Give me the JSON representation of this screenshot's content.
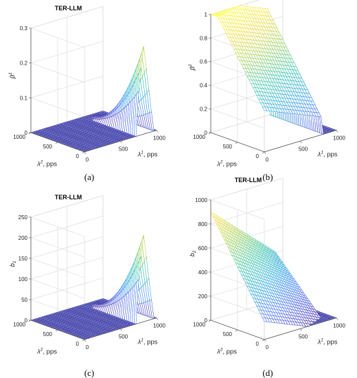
{
  "chart_data": [
    {
      "type": "surface3d",
      "panel": "a",
      "caption": "(a)",
      "title": "TER-LLM",
      "zlabel": {
        "main": "β",
        "sup": "1"
      },
      "xlabel": {
        "main": "λ",
        "sup": "1",
        "tail": ", pps"
      },
      "ylabel": {
        "main": "λ",
        "sup": "2",
        "tail": ", pps"
      },
      "xlim": [
        0,
        1000
      ],
      "ylim": [
        0,
        1000
      ],
      "zlim": [
        0,
        0.3
      ],
      "xticks": [
        0,
        500,
        1000
      ],
      "yticks": [
        0,
        500,
        1000
      ],
      "zticks": [
        0,
        0.1,
        0.2,
        0.3
      ],
      "ztick_labels": [
        "0",
        "0.1",
        "0.2",
        "0.3"
      ],
      "surface": "β¹ ≈ 0 for λ¹ below ~750 pps; rises on a ridge near λ¹ ≈ 750–950 pps, largest at small λ²",
      "peak": {
        "x": 800,
        "y": 0,
        "z": 0.25
      }
    },
    {
      "type": "surface3d",
      "panel": "b",
      "caption": "(b)",
      "title": "TER-LLM",
      "zlabel": {
        "main": "β",
        "sup": "2"
      },
      "xlabel": {
        "main": "λ",
        "sup": "1",
        "tail": ", pps"
      },
      "ylabel": {
        "main": "λ",
        "sup": "2",
        "tail": ", pps"
      },
      "xlim": [
        0,
        1000
      ],
      "ylim": [
        0,
        1000
      ],
      "zlim": [
        0,
        1
      ],
      "xticks": [
        0,
        500,
        1000
      ],
      "yticks": [
        0,
        500,
        1000
      ],
      "zticks": [
        0,
        0.2,
        0.4,
        0.6,
        0.8,
        1
      ],
      "ztick_labels": [
        "0",
        "0.2",
        "0.4",
        "0.6",
        "0.8",
        "1"
      ],
      "surface": "β² grows with λ² + λ¹, reaching 1 along the high-λ² edge; drops to 0 beyond λ¹ ≈ 800 pps",
      "peak": {
        "x": 0,
        "y": 1000,
        "z": 1
      }
    },
    {
      "type": "surface3d",
      "panel": "c",
      "caption": "(c)",
      "title": "TER-LLM",
      "zlabel": {
        "main": "b",
        "sub": "1"
      },
      "xlabel": {
        "main": "λ",
        "sup": "1",
        "tail": ", pps"
      },
      "ylabel": {
        "main": "λ",
        "sup": "2",
        "tail": ", pps"
      },
      "xlim": [
        0,
        1000
      ],
      "ylim": [
        0,
        1000
      ],
      "zlim": [
        0,
        250
      ],
      "xticks": [
        0,
        500,
        1000
      ],
      "yticks": [
        0,
        500,
        1000
      ],
      "zticks": [
        0,
        50,
        100,
        150,
        200,
        250
      ],
      "ztick_labels": [
        "0",
        "50",
        "100",
        "150",
        "200",
        "250"
      ],
      "surface": "b₁ ≈ 0 for λ¹ below ~750 pps; ridge near λ¹ ≈ 750–950 pps, largest at small λ²",
      "peak": {
        "x": 800,
        "y": 0,
        "z": 210
      }
    },
    {
      "type": "surface3d",
      "panel": "d",
      "caption": "(d)",
      "title": "TER-LLM",
      "zlabel": {
        "main": "b",
        "sub": "2"
      },
      "xlabel": {
        "main": "λ",
        "sup": "1",
        "tail": ", pps"
      },
      "ylabel": {
        "main": "λ",
        "sup": "2",
        "tail": ", pps"
      },
      "xlim": [
        0,
        1000
      ],
      "ylim": [
        0,
        1000
      ],
      "zlim": [
        0,
        1000
      ],
      "xticks": [
        0,
        500,
        1000
      ],
      "yticks": [
        0,
        500,
        1000
      ],
      "zticks": [
        0,
        200,
        400,
        600,
        800,
        1000
      ],
      "ztick_labels": [
        "0",
        "200",
        "400",
        "600",
        "800",
        "1000"
      ],
      "surface": "b₂ peaks near 1000 at high λ², decreasing toward 0 as λ¹ → 1000 and λ² → 0",
      "peak": {
        "x": 0,
        "y": 1000,
        "z": 1000
      }
    }
  ],
  "colors": {
    "colormap": [
      "#3e26a8",
      "#4770f8",
      "#1fa3dc",
      "#2fc2a0",
      "#99cc50",
      "#f1d52c",
      "#f9fb15"
    ],
    "axes": "#444444",
    "grid": "#d6d6d6",
    "floor": "#2e2e9a"
  }
}
